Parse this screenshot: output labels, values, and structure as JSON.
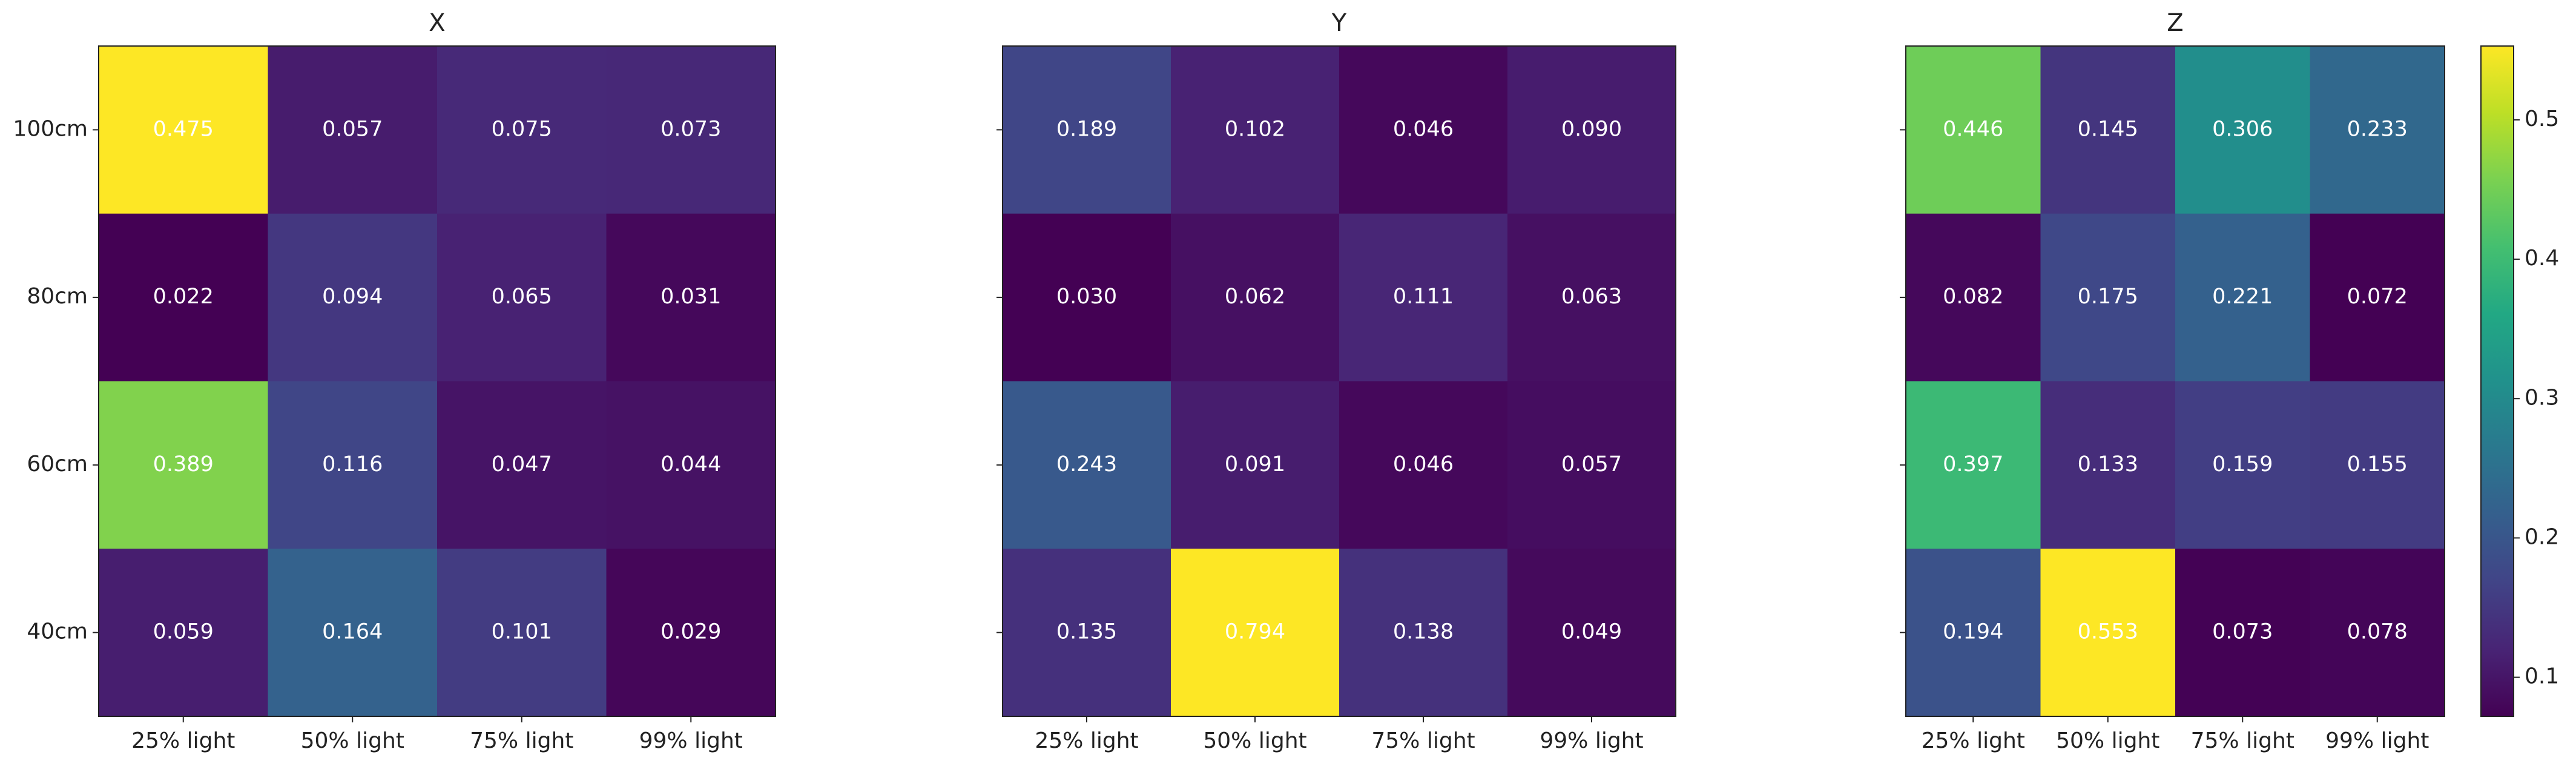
{
  "chart_data": [
    {
      "type": "heatmap",
      "title": "X",
      "colormap": "viridis",
      "x_categories": [
        "25% light",
        "50% light",
        "75% light",
        "99% light"
      ],
      "y_categories": [
        "100cm",
        "80cm",
        "60cm",
        "40cm"
      ],
      "values": [
        [
          0.475,
          0.057,
          0.075,
          0.073
        ],
        [
          0.022,
          0.094,
          0.065,
          0.031
        ],
        [
          0.389,
          0.116,
          0.047,
          0.044
        ],
        [
          0.059,
          0.164,
          0.101,
          0.029
        ]
      ],
      "value_labels": [
        [
          "0.475",
          "0.057",
          "0.075",
          "0.073"
        ],
        [
          "0.022",
          "0.094",
          "0.065",
          "0.031"
        ],
        [
          "0.389",
          "0.116",
          "0.047",
          "0.044"
        ],
        [
          "0.059",
          "0.164",
          "0.101",
          "0.029"
        ]
      ],
      "clim": [
        0.022,
        0.475
      ]
    },
    {
      "type": "heatmap",
      "title": "Y",
      "colormap": "viridis",
      "x_categories": [
        "25% light",
        "50% light",
        "75% light",
        "99% light"
      ],
      "values": [
        [
          0.189,
          0.102,
          0.046,
          0.09
        ],
        [
          0.03,
          0.062,
          0.111,
          0.063
        ],
        [
          0.243,
          0.091,
          0.046,
          0.057
        ],
        [
          0.135,
          0.794,
          0.138,
          0.049
        ]
      ],
      "value_labels": [
        [
          "0.189",
          "0.102",
          "0.046",
          "0.090"
        ],
        [
          "0.030",
          "0.062",
          "0.111",
          "0.063"
        ],
        [
          "0.243",
          "0.091",
          "0.046",
          "0.057"
        ],
        [
          "0.135",
          "0.794",
          "0.138",
          "0.049"
        ]
      ],
      "clim": [
        0.03,
        0.794
      ]
    },
    {
      "type": "heatmap",
      "title": "Z",
      "colormap": "viridis",
      "x_categories": [
        "25% light",
        "50% light",
        "75% light",
        "99% light"
      ],
      "values": [
        [
          0.446,
          0.145,
          0.306,
          0.233
        ],
        [
          0.082,
          0.175,
          0.221,
          0.072
        ],
        [
          0.397,
          0.133,
          0.159,
          0.155
        ],
        [
          0.194,
          0.553,
          0.073,
          0.078
        ]
      ],
      "value_labels": [
        [
          "0.446",
          "0.145",
          "0.306",
          "0.233"
        ],
        [
          "0.082",
          "0.175",
          "0.221",
          "0.072"
        ],
        [
          "0.397",
          "0.133",
          "0.159",
          "0.155"
        ],
        [
          "0.194",
          "0.553",
          "0.073",
          "0.078"
        ]
      ],
      "clim": [
        0.072,
        0.553
      ],
      "colorbar": true,
      "colorbar_ticks": [
        0.1,
        0.2,
        0.3,
        0.4,
        0.5
      ]
    }
  ]
}
